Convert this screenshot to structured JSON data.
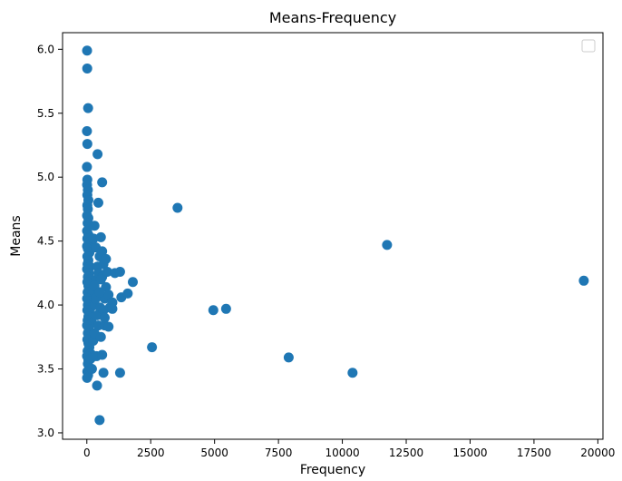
{
  "chart_data": {
    "type": "scatter",
    "title": "Means-Frequency",
    "xlabel": "Frequency",
    "ylabel": "Means",
    "xlim": [
      -950,
      20200
    ],
    "ylim": [
      2.95,
      6.13
    ],
    "xticks": [
      0,
      2500,
      5000,
      7500,
      10000,
      12500,
      15000,
      17500,
      20000
    ],
    "yticks": [
      3.0,
      3.5,
      4.0,
      4.5,
      5.0,
      5.5,
      6.0
    ],
    "grid": false,
    "legend": {
      "placement": "top-right",
      "entries": []
    },
    "marker_color": "#1f77b4",
    "series": [
      {
        "points": [
          [
            10,
            5.99
          ],
          [
            15,
            5.85
          ],
          [
            50,
            5.54
          ],
          [
            5,
            5.36
          ],
          [
            20,
            5.26
          ],
          [
            5,
            5.08
          ],
          [
            20,
            4.98
          ],
          [
            10,
            4.94
          ],
          [
            40,
            4.9
          ],
          [
            20,
            4.86
          ],
          [
            60,
            4.82
          ],
          [
            20,
            4.78
          ],
          [
            40,
            4.75
          ],
          [
            10,
            4.7
          ],
          [
            60,
            4.68
          ],
          [
            30,
            4.64
          ],
          [
            100,
            4.62
          ],
          [
            10,
            4.58
          ],
          [
            60,
            4.55
          ],
          [
            20,
            4.52
          ],
          [
            80,
            4.49
          ],
          [
            10,
            4.46
          ],
          [
            40,
            4.44
          ],
          [
            100,
            4.41
          ],
          [
            20,
            4.38
          ],
          [
            60,
            4.35
          ],
          [
            30,
            4.32
          ],
          [
            120,
            4.3
          ],
          [
            10,
            4.28
          ],
          [
            80,
            4.25
          ],
          [
            40,
            4.22
          ],
          [
            150,
            4.2
          ],
          [
            20,
            4.18
          ],
          [
            60,
            4.15
          ],
          [
            100,
            4.12
          ],
          [
            30,
            4.1
          ],
          [
            200,
            4.08
          ],
          [
            10,
            4.05
          ],
          [
            80,
            4.03
          ],
          [
            40,
            4.0
          ],
          [
            150,
            3.98
          ],
          [
            20,
            3.96
          ],
          [
            100,
            3.94
          ],
          [
            60,
            3.91
          ],
          [
            30,
            3.88
          ],
          [
            200,
            3.86
          ],
          [
            10,
            3.84
          ],
          [
            80,
            3.81
          ],
          [
            40,
            3.78
          ],
          [
            120,
            3.76
          ],
          [
            20,
            3.73
          ],
          [
            60,
            3.7
          ],
          [
            100,
            3.67
          ],
          [
            30,
            3.64
          ],
          [
            150,
            3.62
          ],
          [
            10,
            3.6
          ],
          [
            60,
            3.57
          ],
          [
            40,
            3.54
          ],
          [
            100,
            3.51
          ],
          [
            20,
            3.48
          ],
          [
            50,
            3.45
          ],
          [
            10,
            3.43
          ],
          [
            200,
            3.5
          ],
          [
            150,
            3.58
          ],
          [
            250,
            3.72
          ],
          [
            300,
            4.62
          ],
          [
            320,
            4.0
          ],
          [
            350,
            4.45
          ],
          [
            380,
            4.2
          ],
          [
            400,
            3.92
          ],
          [
            420,
            4.3
          ],
          [
            450,
            3.84
          ],
          [
            480,
            4.1
          ],
          [
            500,
            4.38
          ],
          [
            520,
            3.98
          ],
          [
            380,
            3.6
          ],
          [
            300,
            3.78
          ],
          [
            260,
            4.52
          ],
          [
            350,
            4.05
          ],
          [
            450,
            4.25
          ],
          [
            300,
            4.15
          ],
          [
            420,
            5.18
          ],
          [
            600,
            4.96
          ],
          [
            450,
            4.8
          ],
          [
            400,
            3.37
          ],
          [
            500,
            3.1
          ],
          [
            650,
            3.47
          ],
          [
            600,
            3.61
          ],
          [
            550,
            3.75
          ],
          [
            700,
            3.84
          ],
          [
            650,
            3.96
          ],
          [
            700,
            4.05
          ],
          [
            750,
            4.14
          ],
          [
            600,
            4.22
          ],
          [
            650,
            4.32
          ],
          [
            600,
            4.42
          ],
          [
            750,
            4.36
          ],
          [
            800,
            4.26
          ],
          [
            850,
            4.08
          ],
          [
            900,
            3.98
          ],
          [
            850,
            3.83
          ],
          [
            700,
            3.9
          ],
          [
            550,
            4.53
          ],
          [
            500,
            4.1
          ],
          [
            550,
            4.2
          ],
          [
            1000,
            4.02
          ],
          [
            1000,
            3.97
          ],
          [
            1100,
            4.25
          ],
          [
            1300,
            4.26
          ],
          [
            1350,
            4.06
          ],
          [
            1300,
            3.47
          ],
          [
            1600,
            4.09
          ],
          [
            1800,
            4.18
          ],
          [
            2550,
            3.67
          ],
          [
            3550,
            4.76
          ],
          [
            4950,
            3.96
          ],
          [
            5450,
            3.97
          ],
          [
            7900,
            3.59
          ],
          [
            10400,
            3.47
          ],
          [
            11750,
            4.47
          ],
          [
            19450,
            4.19
          ]
        ]
      }
    ]
  }
}
